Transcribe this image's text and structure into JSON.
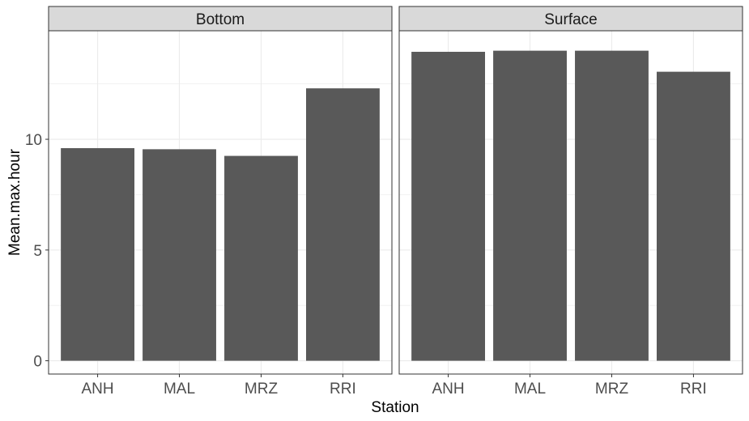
{
  "chart_data": {
    "type": "bar",
    "xlabel": "Station",
    "ylabel": "Mean.max.hour",
    "ylim": [
      -0.6,
      14.9
    ],
    "yticks": [
      0,
      5,
      10
    ],
    "ytick_labels": [
      "0",
      "5",
      "10"
    ],
    "grid": true,
    "colors": {
      "bar": "#595959",
      "strip": "#d9d9d9",
      "grid": "#ebebeb",
      "panel_border": "#333333"
    },
    "panels": [
      {
        "title": "Bottom",
        "categories": [
          "ANH",
          "MAL",
          "MRZ",
          "RRI"
        ],
        "values": [
          9.6,
          9.55,
          9.25,
          12.3
        ]
      },
      {
        "title": "Surface",
        "categories": [
          "ANH",
          "MAL",
          "MRZ",
          "RRI"
        ],
        "values": [
          13.95,
          14.0,
          14.0,
          13.05
        ]
      }
    ]
  }
}
